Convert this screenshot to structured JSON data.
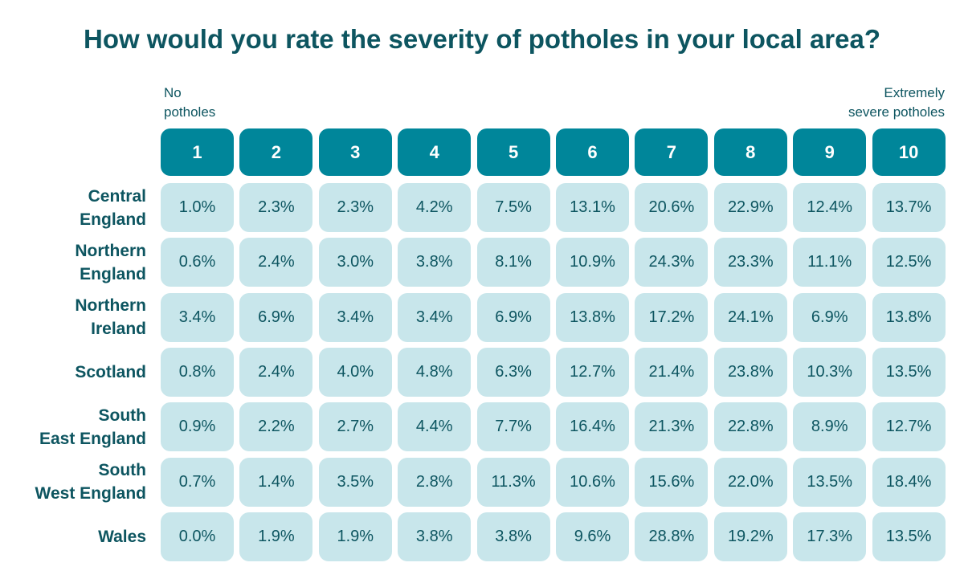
{
  "title": "How would you rate the severity of potholes in your local area?",
  "scale": {
    "low_label": "No\npotholes",
    "high_label": "Extremely\nsevere potholes"
  },
  "colors": {
    "header": "#00869a",
    "cell": "#c8e6eb",
    "text": "#0d5560"
  },
  "chart_data": {
    "type": "table",
    "title": "How would you rate the severity of potholes in your local area?",
    "columns": [
      "1",
      "2",
      "3",
      "4",
      "5",
      "6",
      "7",
      "8",
      "9",
      "10"
    ],
    "rows": [
      {
        "label": "Central\nEngland",
        "values": [
          "1.0%",
          "2.3%",
          "2.3%",
          "4.2%",
          "7.5%",
          "13.1%",
          "20.6%",
          "22.9%",
          "12.4%",
          "13.7%"
        ]
      },
      {
        "label": "Northern\nEngland",
        "values": [
          "0.6%",
          "2.4%",
          "3.0%",
          "3.8%",
          "8.1%",
          "10.9%",
          "24.3%",
          "23.3%",
          "11.1%",
          "12.5%"
        ]
      },
      {
        "label": "Northern\nIreland",
        "values": [
          "3.4%",
          "6.9%",
          "3.4%",
          "3.4%",
          "6.9%",
          "13.8%",
          "17.2%",
          "24.1%",
          "6.9%",
          "13.8%"
        ]
      },
      {
        "label": "Scotland",
        "values": [
          "0.8%",
          "2.4%",
          "4.0%",
          "4.8%",
          "6.3%",
          "12.7%",
          "21.4%",
          "23.8%",
          "10.3%",
          "13.5%"
        ]
      },
      {
        "label": "South\nEast England",
        "values": [
          "0.9%",
          "2.2%",
          "2.7%",
          "4.4%",
          "7.7%",
          "16.4%",
          "21.3%",
          "22.8%",
          "8.9%",
          "12.7%"
        ]
      },
      {
        "label": "South\nWest England",
        "values": [
          "0.7%",
          "1.4%",
          "3.5%",
          "2.8%",
          "11.3%",
          "10.6%",
          "15.6%",
          "22.0%",
          "13.5%",
          "18.4%"
        ]
      },
      {
        "label": "Wales",
        "values": [
          "0.0%",
          "1.9%",
          "1.9%",
          "3.8%",
          "3.8%",
          "9.6%",
          "28.8%",
          "19.2%",
          "17.3%",
          "13.5%"
        ]
      }
    ]
  }
}
